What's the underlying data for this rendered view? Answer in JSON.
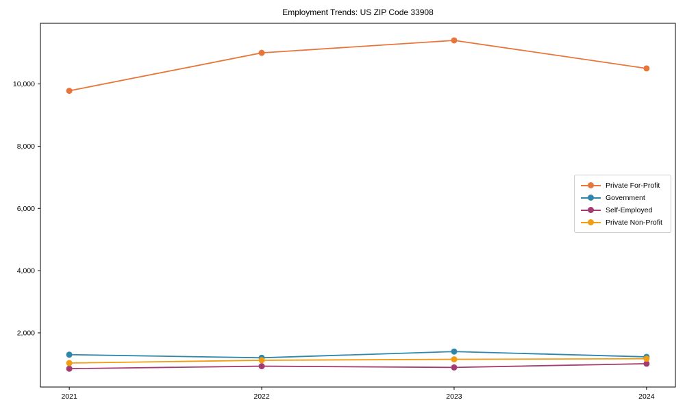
{
  "chart_data": {
    "type": "line",
    "title": "Employment Trends: US ZIP Code 33908",
    "xlabel": "",
    "ylabel": "",
    "x": [
      2021,
      2022,
      2023,
      2024
    ],
    "x_tick_labels": [
      "2021",
      "2022",
      "2023",
      "2024"
    ],
    "series": [
      {
        "name": "Private For-Profit",
        "color": "#E8763B",
        "values": [
          9780,
          11000,
          11400,
          10500
        ]
      },
      {
        "name": "Government",
        "color": "#2E86AB",
        "values": [
          1300,
          1200,
          1400,
          1230
        ]
      },
      {
        "name": "Self-Employed",
        "color": "#A23B72",
        "values": [
          850,
          930,
          890,
          1010
        ]
      },
      {
        "name": "Private Non-Profit",
        "color": "#F29C11",
        "values": [
          1030,
          1120,
          1150,
          1170
        ]
      }
    ],
    "yticks": [
      2000,
      4000,
      6000,
      8000,
      10000
    ],
    "ytick_labels": [
      "2,000",
      "4,000",
      "6,000",
      "8,000",
      "10,000"
    ],
    "ylim": [
      260,
      11950
    ],
    "xlim": [
      2020.85,
      2024.15
    ],
    "grid": false,
    "legend_position": "center-right",
    "marker": "circle",
    "axis_color": "#000000",
    "background_color": "#ffffff"
  }
}
